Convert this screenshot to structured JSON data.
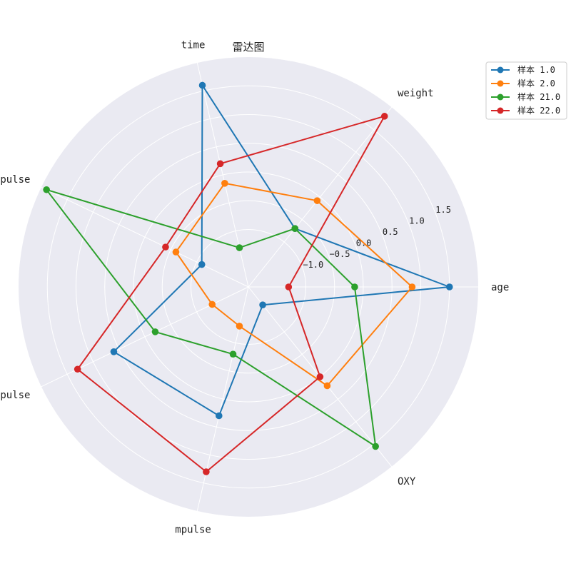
{
  "chart_data": {
    "type": "radar",
    "title": "雷达图",
    "axes": [
      "age",
      "weight",
      "time",
      "spulse",
      "rpulse",
      "mpulse",
      "OXY"
    ],
    "rlim": [
      -2.0,
      2.0
    ],
    "rticks": [
      -1.0,
      -0.5,
      0.0,
      0.5,
      1.0,
      1.5
    ],
    "rtick_labels": [
      "−1.0",
      "−0.5",
      "0.0",
      "0.5",
      "1.0",
      "1.5"
    ],
    "grid": true,
    "legend_position": "top-right, outside plot",
    "series": [
      {
        "name": "样本 1.0",
        "color": "#1f77b4",
        "values": [
          1.5,
          -0.7,
          1.6,
          -1.1,
          0.6,
          0.3,
          -1.6
        ]
      },
      {
        "name": "样本 2.0",
        "color": "#ff7f0e",
        "values": [
          0.85,
          -0.08,
          -0.15,
          -0.6,
          -1.3,
          -1.3,
          0.2
        ]
      },
      {
        "name": "样本 21.0",
        "color": "#2ca02c",
        "values": [
          -0.15,
          -0.7,
          -1.3,
          1.9,
          -0.2,
          -0.8,
          1.55
        ]
      },
      {
        "name": "样本 22.0",
        "color": "#d62728",
        "values": [
          -1.3,
          1.8,
          0.2,
          -0.4,
          1.3,
          1.3,
          0.0
        ]
      }
    ]
  }
}
